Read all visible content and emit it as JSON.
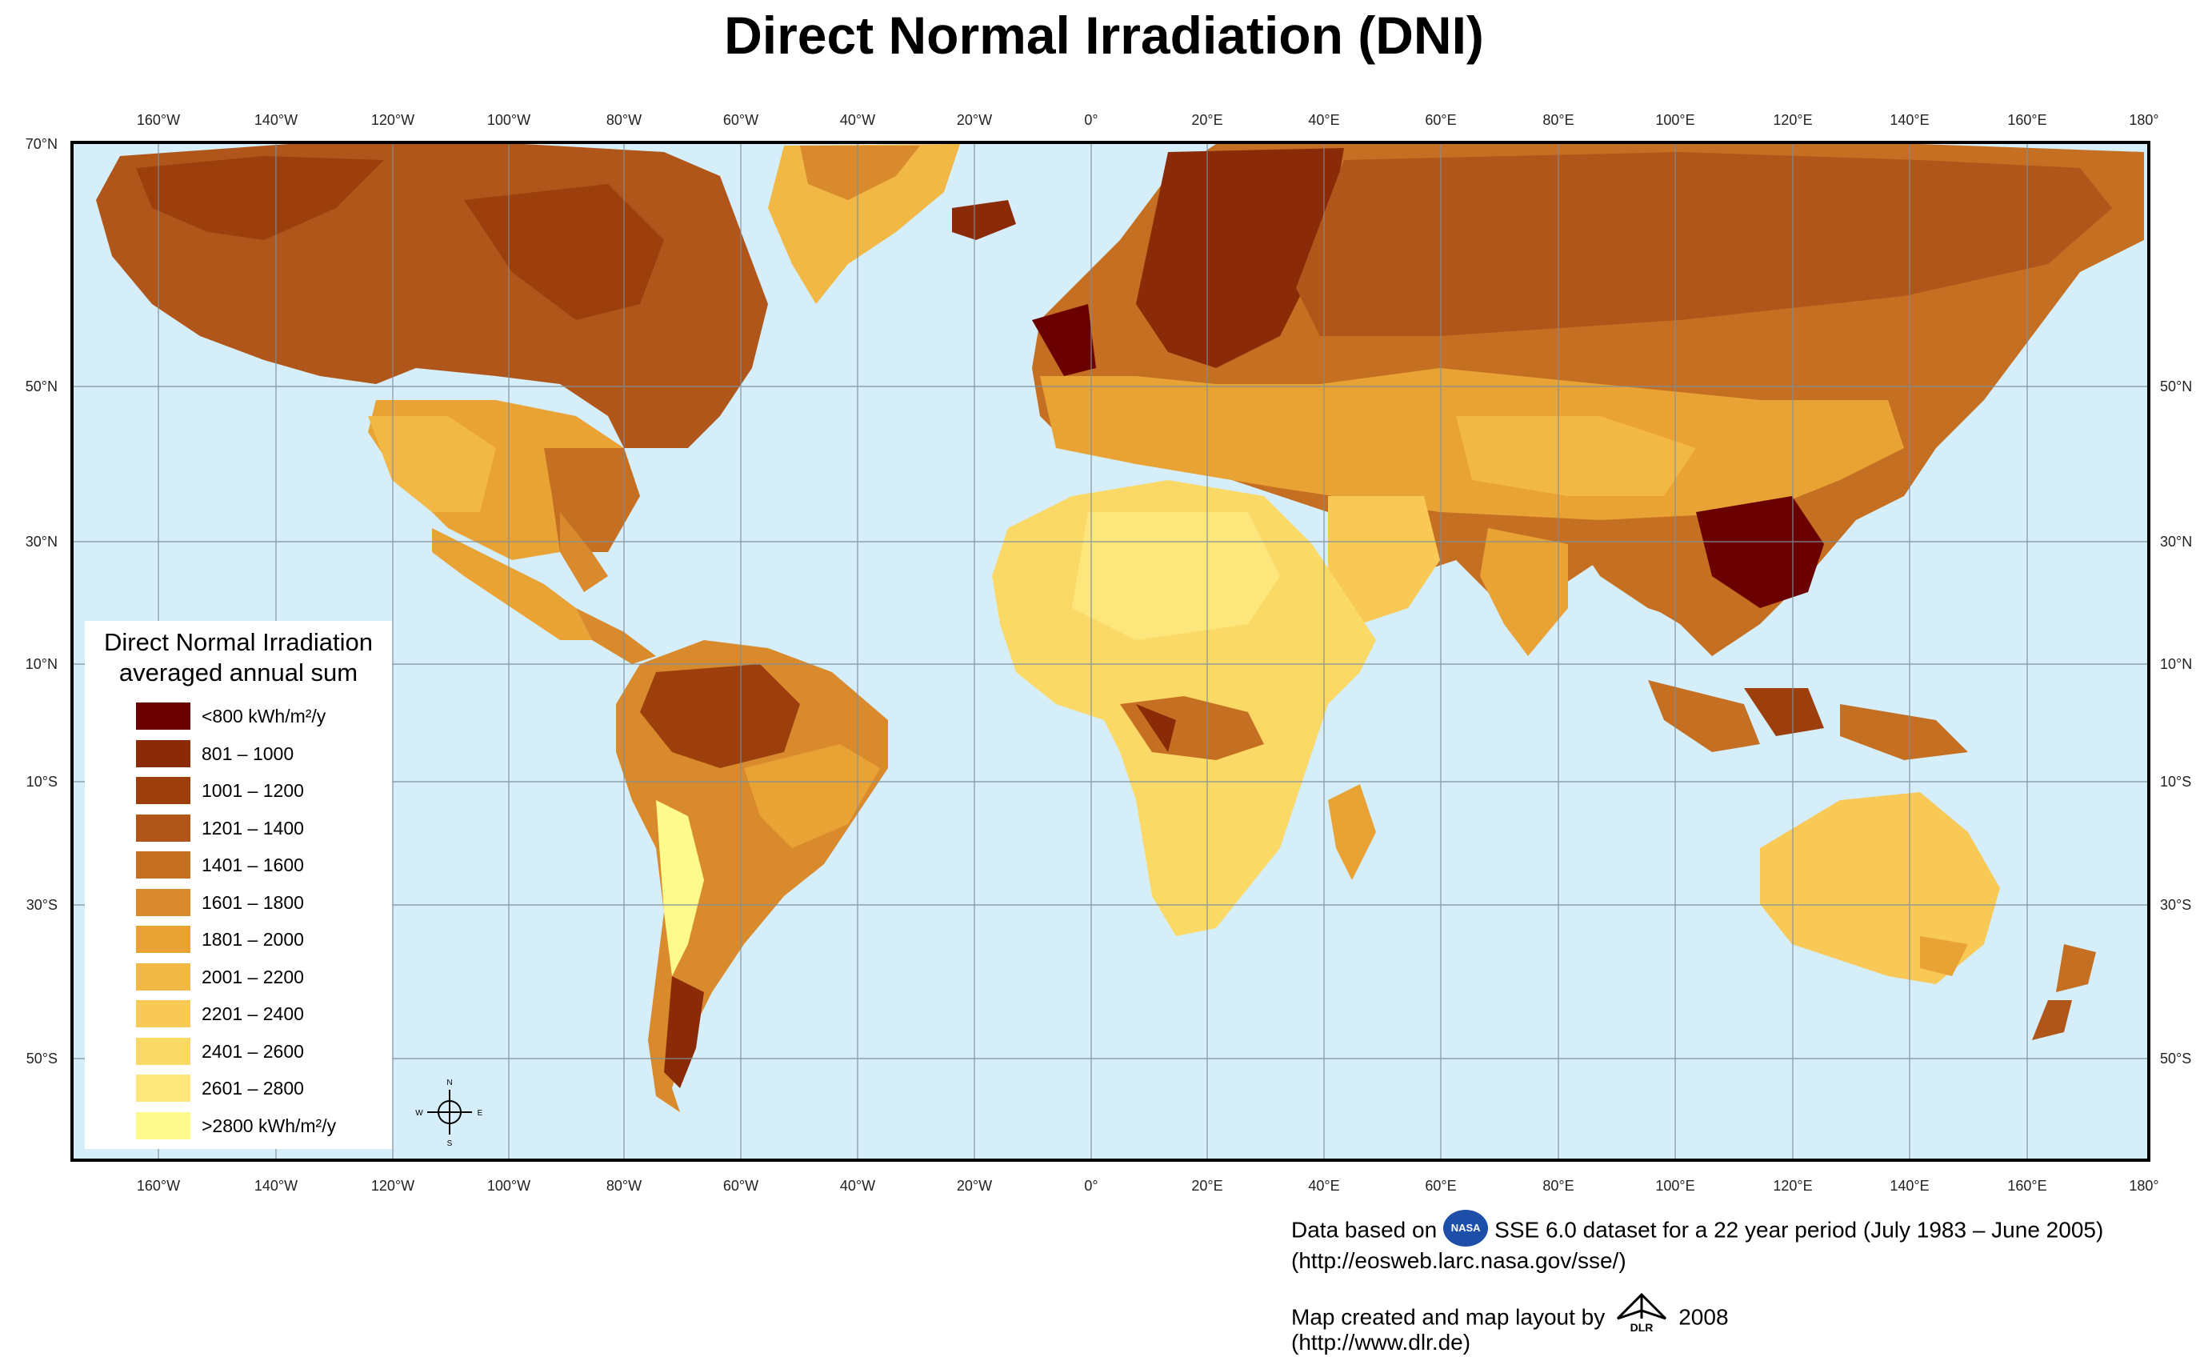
{
  "title": "Direct Normal Irradiation (DNI)",
  "colors": {
    "ocean": "#d6eefa",
    "frame": "#000000",
    "graticule": "#7f8f9a"
  },
  "lon_labels": [
    "160°W",
    "140°W",
    "120°W",
    "100°W",
    "80°W",
    "60°W",
    "40°W",
    "20°W",
    "0°",
    "20°E",
    "40°E",
    "60°E",
    "80°E",
    "100°E",
    "120°E",
    "140°E",
    "160°E",
    "180°"
  ],
  "lat_labels_left": [
    "70°N",
    "50°N",
    "30°N",
    "10°N",
    "10°S",
    "30°S",
    "50°S"
  ],
  "lat_labels_right": [
    "50°N",
    "30°N",
    "10°N",
    "10°S",
    "30°S",
    "50°S"
  ],
  "legend": {
    "title_line1": "Direct Normal Irradiation",
    "title_line2": "averaged annual sum",
    "classes": [
      {
        "label": "<800 kWh/m²/y",
        "color": "#6b0000"
      },
      {
        "label": "801 – 1000",
        "color": "#8a2a07"
      },
      {
        "label": "1001 – 1200",
        "color": "#9c3f0c"
      },
      {
        "label": "1201 – 1400",
        "color": "#b0561a"
      },
      {
        "label": "1401 – 1600",
        "color": "#c46f22"
      },
      {
        "label": "1601 – 1800",
        "color": "#d88a2c"
      },
      {
        "label": "1801 – 2000",
        "color": "#e9a335"
      },
      {
        "label": "2001 – 2200",
        "color": "#f2b845"
      },
      {
        "label": "2201 – 2400",
        "color": "#f8c955"
      },
      {
        "label": "2401 – 2600",
        "color": "#fbd966"
      },
      {
        "label": "2601 – 2800",
        "color": "#fde77c"
      },
      {
        "label": ">2800 kWh/m²/y",
        "color": "#fffa8c"
      }
    ]
  },
  "compass": {
    "n": "N",
    "s": "S",
    "e": "E",
    "w": "W"
  },
  "credits": {
    "line1_pre": "Data based on",
    "nasa_logo": "NASA",
    "line1_post": "SSE 6.0 dataset for a 22 year period (July 1983 – June 2005)",
    "line2": "(http://eosweb.larc.nasa.gov/sse/)",
    "line3_pre": "Map created and map layout by",
    "dlr_logo": "DLR",
    "line3_post": "2008",
    "line4": "(http://www.dlr.de)"
  }
}
